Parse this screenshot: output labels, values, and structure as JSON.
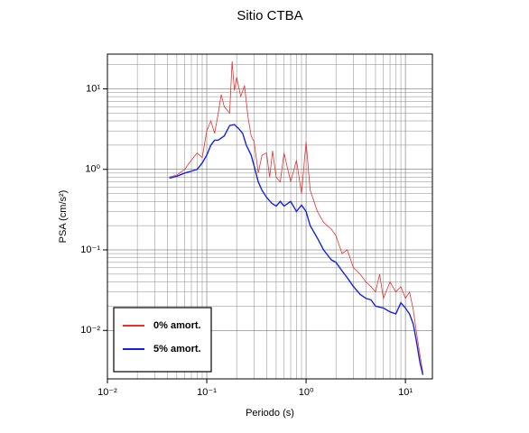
{
  "chart_data": {
    "type": "line",
    "title": "Sitio CTBA",
    "xlabel": "Periodo (s)",
    "ylabel": "PSA (cm/s²)",
    "log_x": true,
    "log_y": true,
    "grid": true,
    "legend": "lower left",
    "xlim": [
      0.01,
      18.7
    ],
    "ylim": [
      0.0025,
      27
    ],
    "xticks": [
      {
        "value": 0.01,
        "label": "10⁻²"
      },
      {
        "value": 0.1,
        "label": "10⁻¹"
      },
      {
        "value": 1,
        "label": "10⁰"
      },
      {
        "value": 10,
        "label": "10¹"
      }
    ],
    "yticks": [
      {
        "value": 0.01,
        "label": "10⁻²"
      },
      {
        "value": 0.1,
        "label": "10⁻¹"
      },
      {
        "value": 1,
        "label": "10⁰"
      },
      {
        "value": 10,
        "label": "10¹"
      }
    ],
    "series": [
      {
        "name": "0% amort.",
        "color": "#e8312f",
        "width": 0.8,
        "x": [
          0.042,
          0.05,
          0.06,
          0.07,
          0.08,
          0.09,
          0.1,
          0.11,
          0.12,
          0.13,
          0.14,
          0.15,
          0.17,
          0.18,
          0.19,
          0.2,
          0.22,
          0.24,
          0.26,
          0.28,
          0.3,
          0.33,
          0.36,
          0.4,
          0.43,
          0.46,
          0.5,
          0.55,
          0.6,
          0.7,
          0.8,
          0.9,
          1.0,
          1.1,
          1.3,
          1.5,
          1.8,
          2.0,
          2.3,
          2.6,
          3.0,
          3.5,
          4,
          4.5,
          5,
          5.5,
          6,
          7,
          8,
          9,
          10,
          11,
          12,
          13,
          14,
          15
        ],
        "values": [
          0.8,
          0.85,
          1.0,
          1.3,
          1.6,
          1.4,
          3.0,
          4.0,
          2.8,
          4.8,
          8.5,
          6.0,
          5.0,
          22,
          9.5,
          14,
          8.0,
          11,
          4.5,
          2.6,
          2.2,
          0.9,
          1.5,
          1.6,
          0.8,
          1.7,
          0.8,
          0.7,
          1.6,
          0.7,
          1.3,
          0.5,
          2.2,
          0.55,
          0.3,
          0.22,
          0.18,
          0.15,
          0.09,
          0.1,
          0.06,
          0.05,
          0.04,
          0.035,
          0.03,
          0.05,
          0.025,
          0.04,
          0.03,
          0.035,
          0.025,
          0.03,
          0.018,
          0.009,
          0.005,
          0.003
        ]
      },
      {
        "name": "5% amort.",
        "color": "#1524e0",
        "width": 1.4,
        "x": [
          0.042,
          0.05,
          0.06,
          0.07,
          0.08,
          0.09,
          0.1,
          0.11,
          0.12,
          0.13,
          0.15,
          0.17,
          0.19,
          0.21,
          0.23,
          0.25,
          0.28,
          0.3,
          0.33,
          0.36,
          0.4,
          0.45,
          0.5,
          0.55,
          0.6,
          0.7,
          0.8,
          0.9,
          1.0,
          1.1,
          1.3,
          1.5,
          1.8,
          2.0,
          2.3,
          2.6,
          3.0,
          3.5,
          4,
          4.5,
          5,
          6,
          7,
          8,
          9,
          10,
          11,
          12,
          13,
          14,
          15
        ],
        "values": [
          0.78,
          0.82,
          0.9,
          0.95,
          1.0,
          1.2,
          1.5,
          2.0,
          2.3,
          2.3,
          2.6,
          3.5,
          3.6,
          3.2,
          2.8,
          2.0,
          1.5,
          1.1,
          0.7,
          0.55,
          0.45,
          0.38,
          0.35,
          0.4,
          0.35,
          0.4,
          0.3,
          0.36,
          0.3,
          0.2,
          0.14,
          0.1,
          0.075,
          0.07,
          0.055,
          0.045,
          0.035,
          0.028,
          0.025,
          0.024,
          0.02,
          0.019,
          0.017,
          0.016,
          0.022,
          0.019,
          0.016,
          0.012,
          0.007,
          0.004,
          0.0028
        ]
      }
    ]
  }
}
